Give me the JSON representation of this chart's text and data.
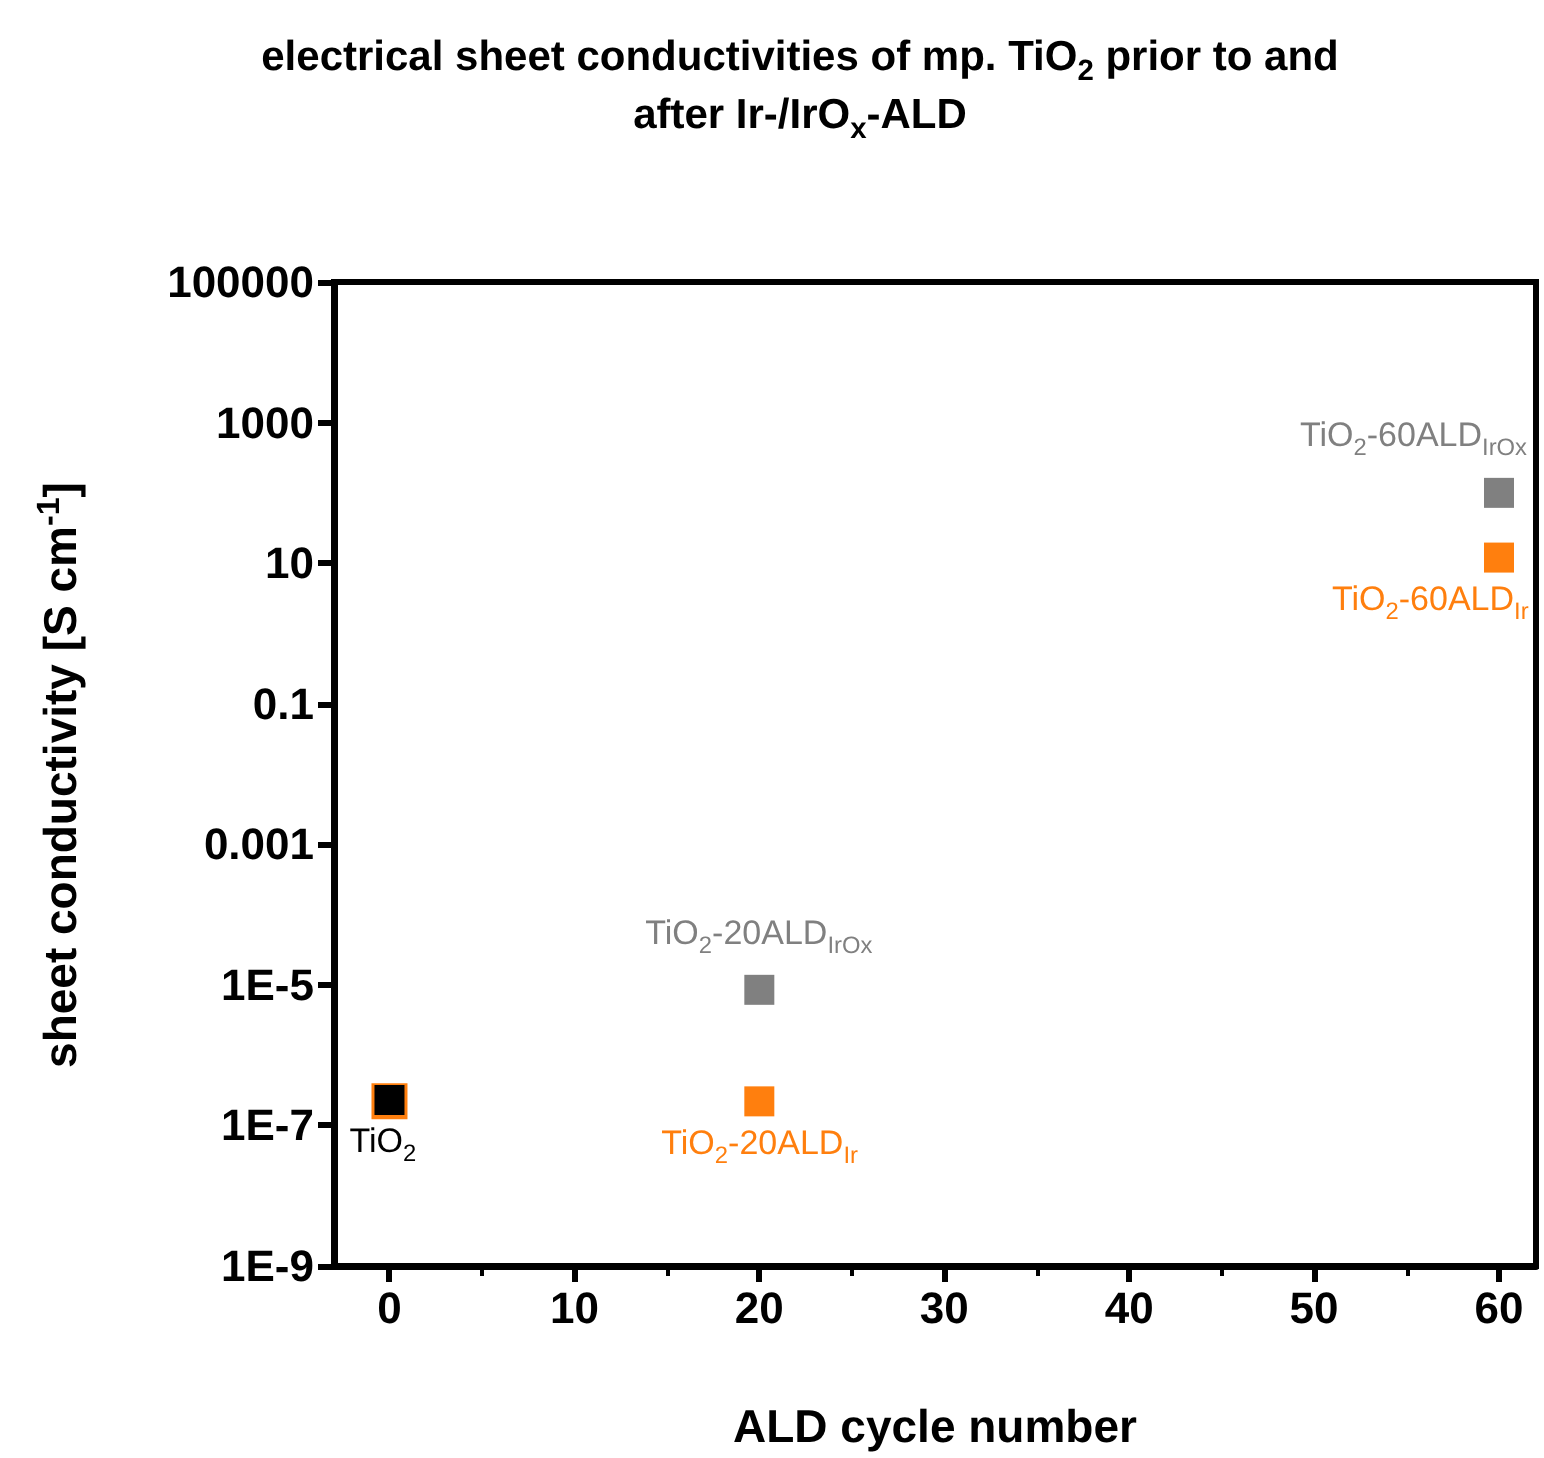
{
  "chart_data": {
    "type": "scatter",
    "title": "electrical sheet conductivities of mp. TiO$_{2}$ prior to and after Ir-/IrO$_{x}$-ALD",
    "xlabel": "ALD cycle number",
    "ylabel": "sheet conductivity [S cm$^{-1}$]",
    "log": "y",
    "marker": "square",
    "grid": false,
    "xlim": [
      -3,
      62
    ],
    "xticks": [
      0,
      10,
      20,
      30,
      40,
      50,
      60
    ],
    "ylim": [
      1e-09,
      100000
    ],
    "yticks": [
      {
        "value": 1e-09,
        "label": "1E-9"
      },
      {
        "value": 1e-07,
        "label": "1E-7"
      },
      {
        "value": 1e-05,
        "label": "1E-5"
      },
      {
        "value": 0.001,
        "label": "0.001"
      },
      {
        "value": 0.1,
        "label": "0.1"
      },
      {
        "value": 10,
        "label": "10"
      },
      {
        "value": 1000,
        "label": "1000"
      },
      {
        "value": 100000,
        "label": "100000"
      }
    ],
    "series": [
      {
        "color": "#ff7f0e",
        "x": [
          0
        ],
        "values": [
          2.2e-07
        ]
      },
      {
        "name": "TiO$_{2}$",
        "color": "#000000",
        "x": [
          0
        ],
        "values": [
          2.3e-07
        ]
      },
      {
        "name": "TiO$_{2}$-20ALD$_{IrOx}$",
        "color": "#808080",
        "x": [
          20
        ],
        "values": [
          8.5e-06
        ]
      },
      {
        "name": "TiO$_{2}$-20ALD$_{Ir}$",
        "color": "#ff7f0e",
        "x": [
          20
        ],
        "values": [
          2.2e-07
        ]
      },
      {
        "name": "TiO$_{2}$-60ALD$_{IrOx}$",
        "color": "#808080",
        "x": [
          60
        ],
        "values": [
          100
        ]
      },
      {
        "name": "TiO$_{2}$-60ALD$_{Ir}$",
        "color": "#ff7f0e",
        "x": [
          60
        ],
        "values": [
          12
        ]
      }
    ]
  }
}
